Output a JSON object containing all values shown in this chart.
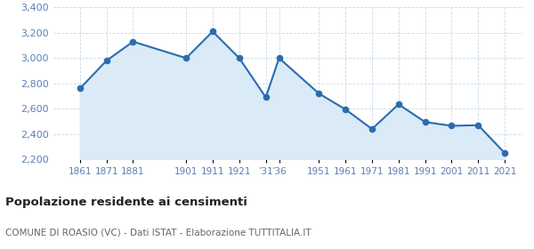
{
  "years": [
    1861,
    1871,
    1881,
    1901,
    1911,
    1921,
    1931,
    1936,
    1951,
    1961,
    1971,
    1981,
    1991,
    2001,
    2011,
    2021
  ],
  "population": [
    2760,
    2980,
    3130,
    3000,
    3210,
    3000,
    2690,
    3000,
    2720,
    2595,
    2440,
    2635,
    2495,
    2465,
    2470,
    2250
  ],
  "x_tick_positions": [
    1861,
    1871,
    1881,
    1901,
    1911,
    1921,
    1931,
    1936,
    1951,
    1961,
    1971,
    1981,
    1991,
    2001,
    2011,
    2021
  ],
  "x_tick_labels": [
    "1861",
    "1871",
    "1881",
    "1901",
    "1911",
    "1921",
    "’31",
    "’36",
    "1951",
    "1961",
    "1971",
    "1981",
    "1991",
    "2001",
    "2011",
    "2021"
  ],
  "line_color": "#2b6cb0",
  "fill_color": "#daeaf7",
  "marker_color": "#2b6cb0",
  "background_color": "#ffffff",
  "grid_color": "#c8d8e8",
  "tick_label_color": "#5b7db5",
  "title": "Popolazione residente ai censimenti",
  "subtitle": "COMUNE DI ROASIO (VC) - Dati ISTAT - Elaborazione TUTTITALIA.IT",
  "ylim": [
    2200,
    3400
  ],
  "yticks": [
    2200,
    2400,
    2600,
    2800,
    3000,
    3200,
    3400
  ],
  "xlim_left": 1851,
  "xlim_right": 2028
}
